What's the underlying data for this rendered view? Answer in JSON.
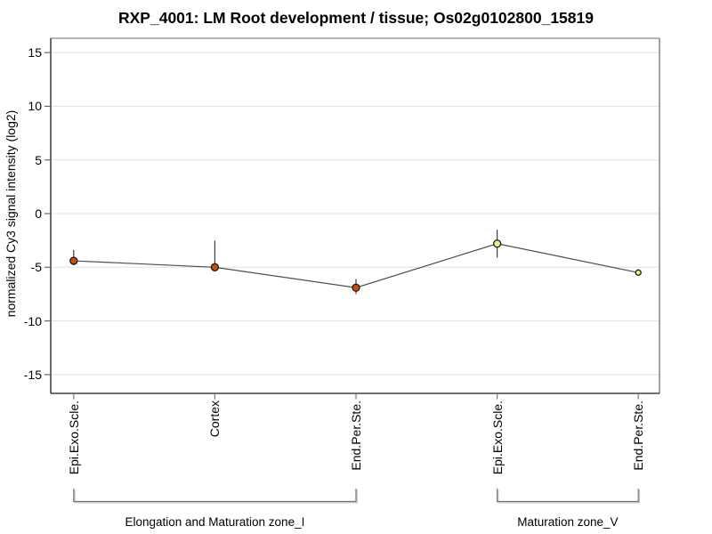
{
  "chart_data": {
    "type": "line",
    "title": "RXP_4001: LM Root development / tissue; Os02g0102800_15819",
    "ylabel": "normalized Cy3 signal intensity (log2)",
    "xlabel": "",
    "ylim": [
      -16.5,
      16.5
    ],
    "yticks": [
      15,
      10,
      5,
      0,
      -5,
      -10,
      -15
    ],
    "grid": true,
    "legend": null,
    "categories": [
      "Epi.Exo.Scle.",
      "Cortex",
      "End.Per.Ste.",
      "Epi.Exo.Scle.",
      "End.Per.Ste."
    ],
    "series": [
      {
        "name": "normalized Cy3 signal intensity (log2)",
        "values": [
          -4.4,
          -5.0,
          -6.9,
          -2.8,
          -5.5
        ],
        "error_high": [
          -3.4,
          -2.5,
          -6.1,
          -1.5,
          null
        ],
        "error_low": [
          -4.8,
          -5.4,
          -7.5,
          -4.1,
          null
        ],
        "point_fills": [
          "#cc4f00",
          "#cc4f00",
          "#cc4f00",
          "#eeee88",
          "#eeee88"
        ]
      }
    ],
    "groups": [
      {
        "label": "Elongation and Maturation zone_I",
        "start": 0,
        "end": 2
      },
      {
        "label": "Maturation zone_V",
        "start": 3,
        "end": 4
      }
    ],
    "colors": {
      "series_line": "#4d4d4d",
      "grid_line": "#e0e0e0",
      "error_bar": "#404040",
      "point_stroke": "#1a1a1a",
      "axis_line": "#1a1a1a",
      "box_top": "#8a8a8a",
      "box_right": "#666666",
      "tick": "#666666",
      "x_tick": "#7a7a7a",
      "bracket": "#757575",
      "bracket_shadow": "#c4c4c4",
      "text": "#000000"
    }
  }
}
